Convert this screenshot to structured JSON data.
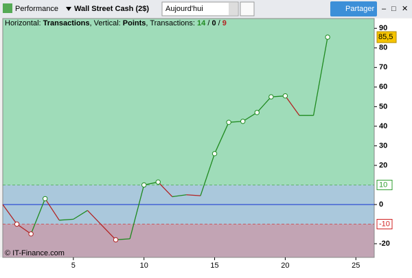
{
  "toolbar": {
    "performance": "Performance",
    "instrument": "Wall Street Cash (2$)",
    "period": "Aujourd'hui",
    "share": "Partager"
  },
  "chart_data": {
    "type": "line",
    "header": {
      "h_text": "Horizontal: ",
      "h_value": "Transactions",
      "v_text": ", Vertical: ",
      "v_value": "Points",
      "t_text": ", Transactions: ",
      "wins": 14,
      "even": 0,
      "losses": 9,
      "slash": " / "
    },
    "x": [
      0,
      1,
      2,
      3,
      4,
      5,
      6,
      8,
      9,
      10,
      11,
      12,
      13,
      14,
      15,
      16,
      17,
      18,
      19,
      20,
      21,
      22,
      23
    ],
    "values": [
      0,
      -10,
      -15,
      3,
      -8,
      -7.5,
      -3,
      -18,
      -17.5,
      10,
      11.5,
      4,
      5,
      4.5,
      26,
      42,
      42.5,
      47,
      55,
      55.5,
      45.5,
      45.5,
      85.5
    ],
    "markers": [
      false,
      true,
      true,
      true,
      false,
      false,
      false,
      true,
      false,
      true,
      true,
      false,
      false,
      false,
      true,
      true,
      true,
      true,
      true,
      true,
      false,
      false,
      true
    ],
    "up_color": "#1f8a1f",
    "down_color": "#b22222",
    "last_label": "85,5",
    "xlim": [
      0,
      26.3
    ],
    "ylim": [
      -27,
      95
    ],
    "xticks": [
      5,
      10,
      15,
      20,
      25
    ],
    "yticks": [
      90,
      80,
      70,
      60,
      50,
      40,
      30,
      20,
      0,
      -20
    ],
    "thresholds": [
      {
        "value": 10,
        "label": "10",
        "color": "#2e9e2e"
      },
      {
        "value": -10,
        "label": "-10",
        "color": "#d02020"
      }
    ],
    "band_colors": {
      "above": "#9fdcb9",
      "between": "#aac8dc",
      "below": "#c2a4b4"
    },
    "zero_color": "#1030d0",
    "source": "© IT-Finance.com"
  }
}
